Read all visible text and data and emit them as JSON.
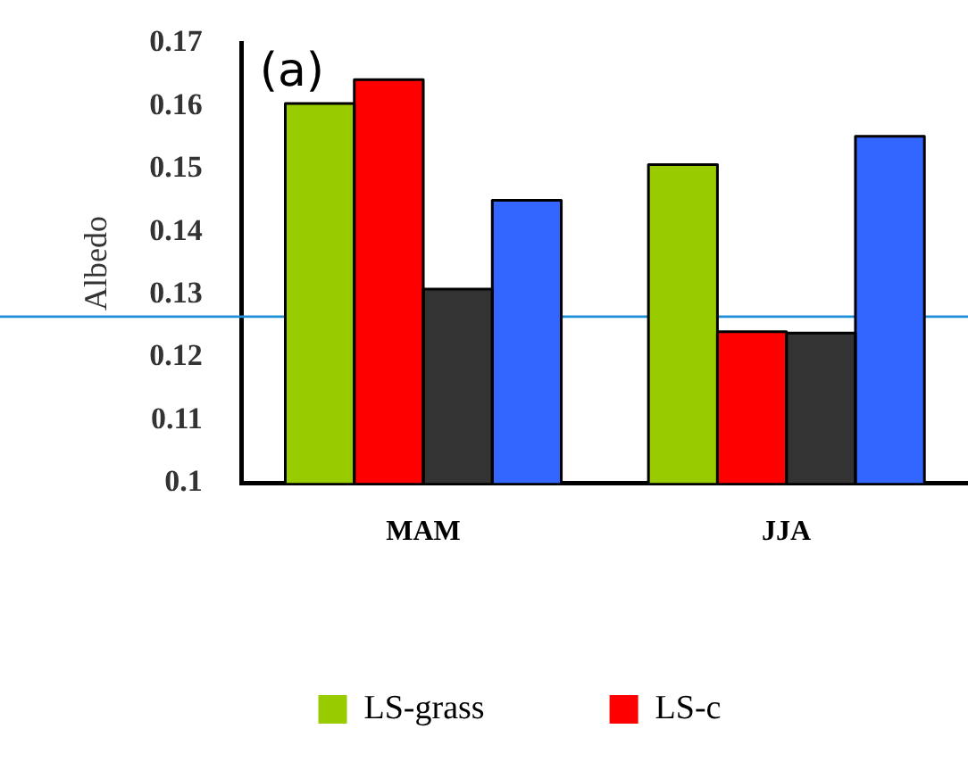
{
  "chart_data": {
    "type": "bar",
    "ylabel": "Albedo",
    "annotations": [
      "(a)"
    ],
    "categories": [
      "MAM",
      "JJA"
    ],
    "series": [
      {
        "name": "LS-grass",
        "color": "#99cc00",
        "values": [
          0.1604,
          0.1507
        ]
      },
      {
        "name": "LS-c",
        "color": "#ff0000",
        "values": [
          0.1642,
          0.1241
        ]
      },
      {
        "color": "#333333",
        "values": [
          0.1309,
          0.1239
        ]
      },
      {
        "color": "#3366ff",
        "values": [
          0.145,
          0.1552
        ]
      }
    ],
    "ylim": [
      0.1,
      0.17
    ],
    "yticks": [
      0.1,
      0.11,
      0.12,
      0.13,
      0.14,
      0.15,
      0.16,
      0.17
    ],
    "ref_lines": [
      {
        "axis": "y",
        "value": 0.1265,
        "color": "#1f8fd6"
      }
    ],
    "grid": false,
    "legend": "bottom"
  }
}
